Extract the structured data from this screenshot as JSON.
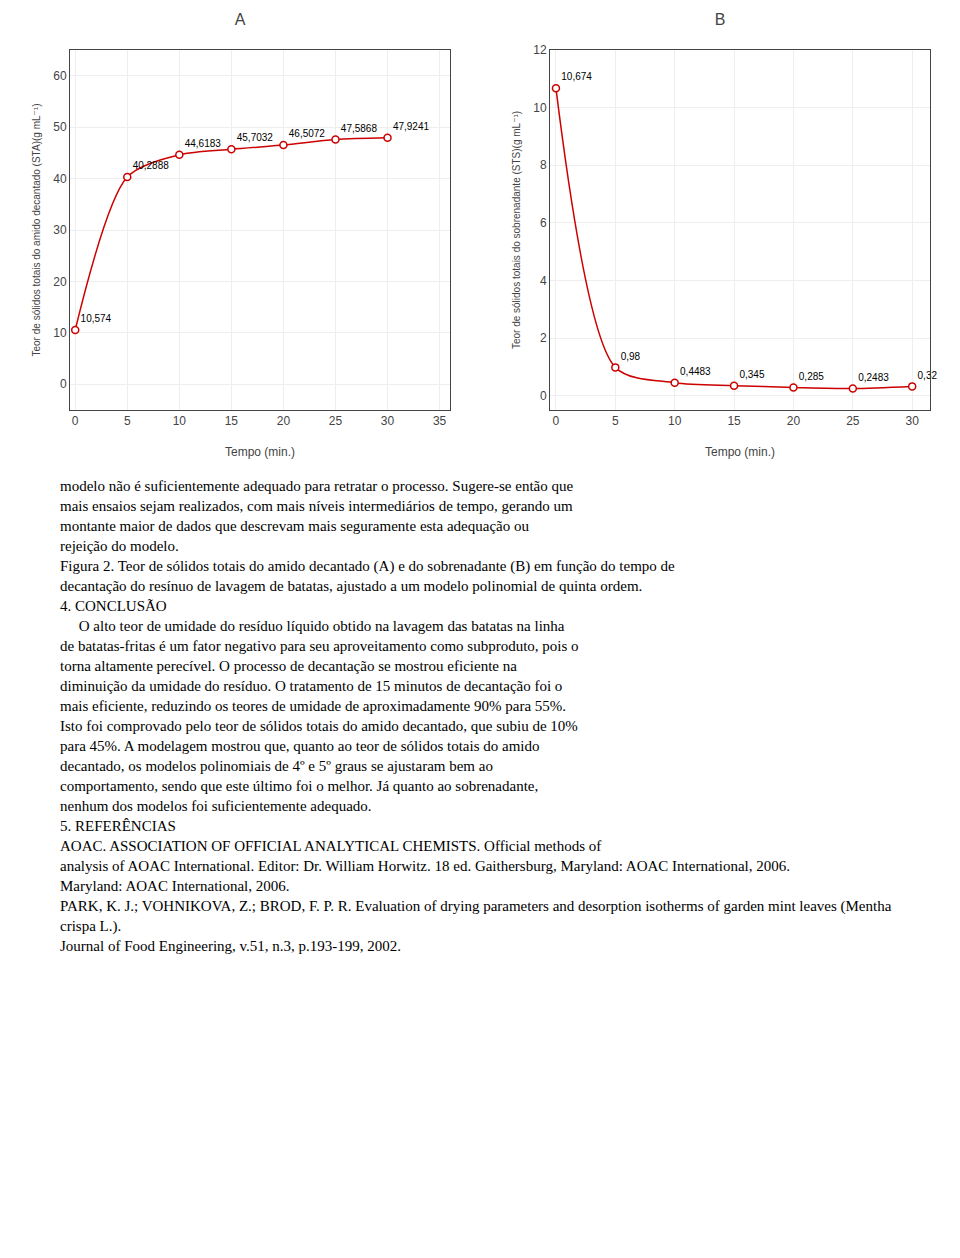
{
  "chart_data": [
    {
      "type": "line",
      "title": "A",
      "x": [
        0,
        5,
        10,
        15,
        20,
        25,
        30
      ],
      "values": [
        10.574,
        40.2888,
        44.6183,
        45.7032,
        46.5072,
        47.5868,
        47.9241
      ],
      "value_labels": [
        "10,574",
        "40,2888",
        "44,6183",
        "45,7032",
        "46,5072",
        "47,5868",
        "47,9241"
      ],
      "data_labels": true,
      "xlabel": "Tempo (min.)",
      "ylabel": "Teor de sólidos totais do amido decantado (STA)(g mL⁻¹)",
      "xlim": [
        -0.5,
        36
      ],
      "ylim": [
        -5,
        65
      ],
      "xticks": [
        0,
        5,
        10,
        15,
        20,
        25,
        30,
        35
      ],
      "yticks": [
        0,
        10,
        20,
        30,
        40,
        50,
        60
      ],
      "grid": true,
      "color": "#cc0000",
      "marker": "circle"
    },
    {
      "type": "line",
      "title": "B",
      "x": [
        0,
        5,
        10,
        15,
        20,
        25,
        30
      ],
      "values": [
        10.674,
        0.98,
        0.4483,
        0.345,
        0.285,
        0.2483,
        0.32
      ],
      "value_labels": [
        "10,674",
        "0,98",
        "0,4483",
        "0,345",
        "0,285",
        "0,2483",
        "0,32"
      ],
      "data_labels": true,
      "xlabel": "Tempo (min.)",
      "ylabel": "Teor de sólidos totais do sobrenadante (STS)(g mL⁻¹)",
      "xlim": [
        -0.5,
        31.5
      ],
      "ylim": [
        -0.5,
        12
      ],
      "xticks": [
        0,
        5,
        10,
        15,
        20,
        25,
        30
      ],
      "yticks": [
        0,
        2,
        4,
        6,
        8,
        10,
        12
      ],
      "grid": true,
      "color": "#cc0000",
      "marker": "circle"
    }
  ],
  "annotations": [
    "modelo não é suficientemente adequado para retratar o processo. Sugere-se então que",
    "mais ensaios sejam realizados, com mais níveis intermediários de tempo, gerando um",
    "montante maior de dados que descrevam mais seguramente esta adequação ou",
    "rejeição do modelo.",
    "Figura 2. Teor de sólidos totais do amido decantado (A) e do sobrenadante (B) em função do tempo de",
    "decantação do resínuo de lavagem de batatas, ajustado a um modelo polinomial de quinta ordem.",
    "4. CONCLUSÃO",
    "     O alto teor de umidade do resíduo líquido obtido na lavagem das batatas na linha",
    "de batatas-fritas é um fator negativo para seu aproveitamento como subproduto, pois o",
    "torna altamente perecível. O processo de decantação se mostrou eficiente na",
    "diminuição da umidade do resíduo. O tratamento de 15 minutos de decantação foi o",
    "mais eficiente, reduzindo os teores de umidade de aproximadamente 90% para 55%.",
    "Isto foi comprovado pelo teor de sólidos totais do amido decantado, que subiu de 10%",
    "para 45%. A modelagem mostrou que, quanto ao teor de sólidos totais do amido",
    "decantado, os modelos polinomiais de 4º e 5º graus se ajustaram bem ao",
    "comportamento, sendo que este último foi o melhor. Já quanto ao sobrenadante,",
    "nenhum dos modelos foi suficientemente adequado.",
    "5. REFERÊNCIAS",
    "AOAC. ASSOCIATION OF OFFICIAL ANALYTICAL CHEMISTS. Official methods of",
    "analysis of AOAC International. Editor: Dr. William Horwitz. 18 ed. Gaithersburg, Maryland: AOAC International, 2006.",
    "Maryland: AOAC International, 2006.",
    "PARK, K. J.; VOHNIKOVA, Z.; BROD, F. P. R. Evaluation of drying parameters and desorption isotherms of garden mint leaves (Mentha crispa L.).",
    "Journal of Food Engineering, v.51, n.3, p.193-199, 2002."
  ]
}
